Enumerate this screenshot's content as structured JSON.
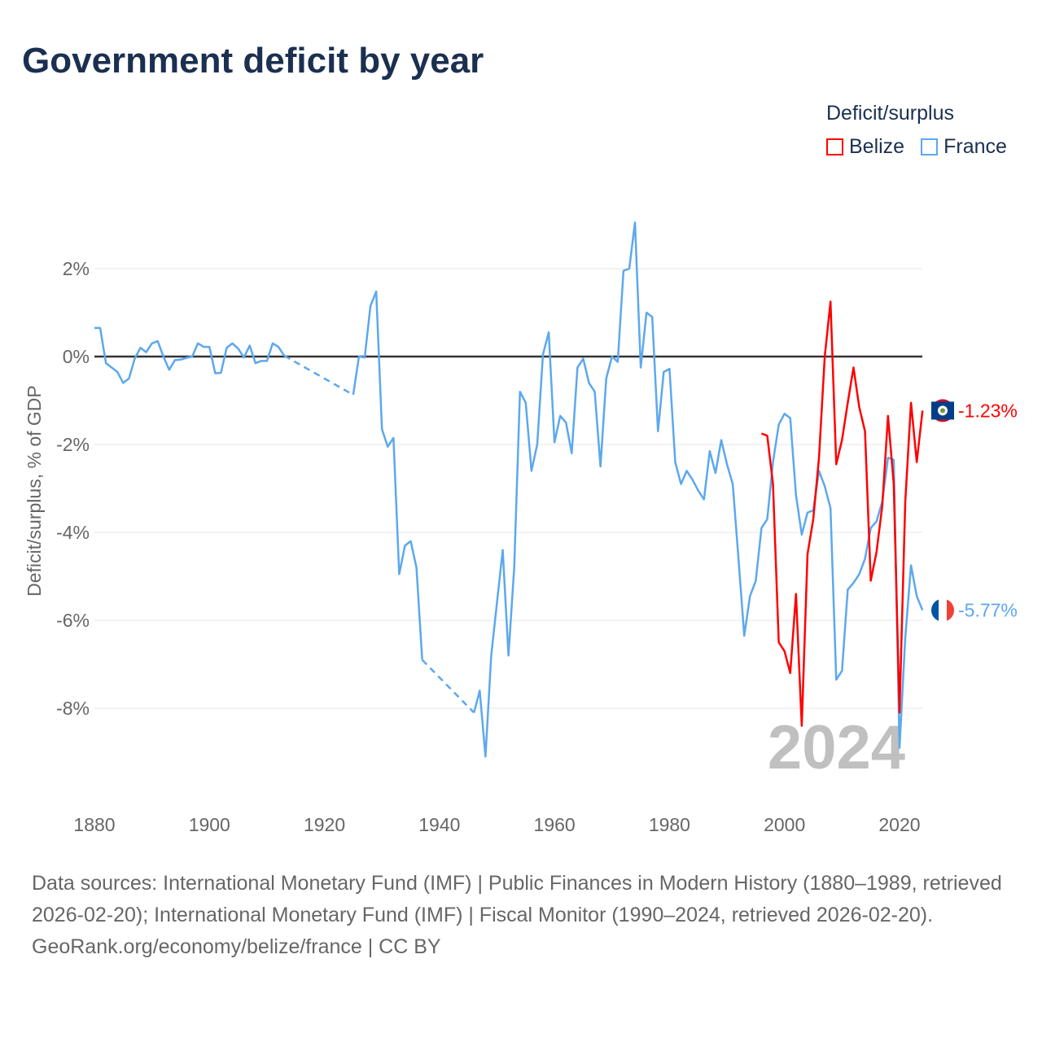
{
  "title": "Government deficit by year",
  "legend": {
    "title": "Deficit/surplus",
    "items": [
      {
        "label": "Belize",
        "color": "#ff0000"
      },
      {
        "label": "France",
        "color": "#5ca8ee"
      }
    ]
  },
  "year_label": "2024",
  "footer": {
    "sources": "Data sources: International Monetary Fund (IMF) | Public Finances in Modern History (1880–1989, retrieved 2026-02-20); International Monetary Fund (IMF) | Fiscal Monitor (1990–2024, retrieved 2026-02-20).",
    "credit": "GeoRank.org/economy/belize/france | CC BY"
  },
  "chart_data": {
    "type": "line",
    "title": "Government deficit by year",
    "xlabel": "",
    "ylabel": "Deficit/surplus, % of GDP",
    "xlim": [
      1880,
      2024
    ],
    "ylim": [
      -9.5,
      3.2
    ],
    "x_ticks": [
      1880,
      1900,
      1920,
      1940,
      1960,
      1980,
      2000,
      2020
    ],
    "x_tick_labels": [
      "1880",
      "1900",
      "1920",
      "1940",
      "1960",
      "1980",
      "2000",
      "2020"
    ],
    "y_ticks": [
      2,
      0,
      -2,
      -4,
      -6,
      -8
    ],
    "y_tick_labels": [
      "2%",
      "0%",
      "-2%",
      "-4%",
      "-6%",
      "-8%"
    ],
    "grid": true,
    "legend_position": "top-right",
    "series": [
      {
        "name": "France",
        "color": "#5ca8ee",
        "start_year": 1880,
        "end_label": "-5.77%",
        "values": [
          0.65,
          0.65,
          -0.15,
          -0.25,
          -0.35,
          -0.6,
          -0.5,
          -0.05,
          0.2,
          0.1,
          0.3,
          0.35,
          0,
          -0.3,
          -0.08,
          -0.07,
          -0.03,
          0,
          0.3,
          0.22,
          0.22,
          -0.38,
          -0.37,
          0.2,
          0.3,
          0.18,
          -0.02,
          0.25,
          -0.15,
          -0.1,
          -0.1,
          0.3,
          0.22,
          0.02,
          null,
          null,
          null,
          null,
          null,
          null,
          null,
          null,
          null,
          null,
          null,
          -0.87,
          0,
          -0.02,
          1.15,
          1.48,
          -1.65,
          -2.05,
          -1.85,
          -4.95,
          -4.3,
          -4.2,
          -4.8,
          -6.9,
          null,
          null,
          null,
          null,
          null,
          null,
          null,
          null,
          -8.1,
          -7.6,
          -9.1,
          -6.8,
          -5.6,
          -4.4,
          -6.8,
          -4.8,
          -0.8,
          -1.05,
          -2.6,
          -2.0,
          0.05,
          0.55,
          -1.95,
          -1.35,
          -1.5,
          -2.2,
          -0.25,
          -0.05,
          -0.6,
          -0.8,
          -2.5,
          -0.5,
          0.0,
          -0.12,
          1.95,
          2.0,
          3.05,
          -0.25,
          1.0,
          0.9,
          -1.7,
          -0.35,
          -0.28,
          -2.4,
          -2.9,
          -2.6,
          -2.8,
          -3.05,
          -3.25,
          -2.15,
          -2.65,
          -1.9,
          -2.45,
          -2.9,
          -4.6,
          -6.35,
          -5.45,
          -5.1,
          -3.9,
          -3.7,
          -2.4,
          -1.55,
          -1.3,
          -1.4,
          -3.15,
          -4.05,
          -3.55,
          -3.5,
          -2.6,
          -2.95,
          -3.45,
          -7.35,
          -7.15,
          -5.3,
          -5.15,
          -4.95,
          -4.6,
          -3.9,
          -3.75,
          -3.3,
          -2.3,
          -2.35,
          -8.9,
          -6.4,
          -4.75,
          -5.45,
          -5.77
        ]
      },
      {
        "name": "Belize",
        "color": "#ff0000",
        "start_year": 1996,
        "end_label": "-1.23%",
        "values": [
          -1.75,
          -1.8,
          -2.9,
          -6.5,
          -6.7,
          -7.2,
          -5.4,
          -8.4,
          -4.5,
          -3.7,
          -2.3,
          0.0,
          1.25,
          -2.45,
          -1.9,
          -1.05,
          -0.25,
          -1.15,
          -1.7,
          -5.1,
          -4.45,
          -3.4,
          -1.35,
          -2.9,
          -8.1,
          -3.3,
          -1.05,
          -2.4,
          -1.23
        ]
      }
    ]
  }
}
